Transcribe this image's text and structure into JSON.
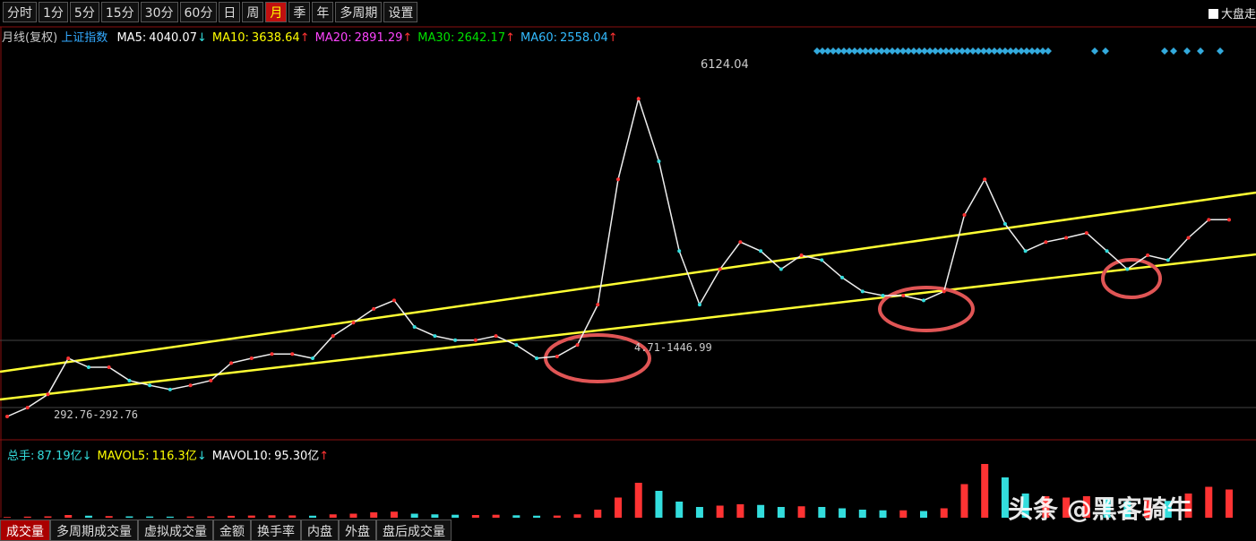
{
  "toolbar": {
    "tabs": [
      "分时",
      "1分",
      "5分",
      "15分",
      "30分",
      "60分",
      "日",
      "周",
      "月",
      "季",
      "年",
      "多周期",
      "设置"
    ],
    "active": 8,
    "checkbox_label": "大盘走"
  },
  "info": {
    "period": "月线(复权)",
    "index": "上证指数",
    "ma": [
      {
        "label": "MA5:",
        "value": "4040.07",
        "arrow": "↓",
        "color": "#ffffff"
      },
      {
        "label": "MA10:",
        "value": "3638.64",
        "arrow": "↑",
        "color": "#ffff00"
      },
      {
        "label": "MA20:",
        "value": "2891.29",
        "arrow": "↑",
        "color": "#ff44ff"
      },
      {
        "label": "MA30:",
        "value": "2642.17",
        "arrow": "↑",
        "color": "#00e000"
      },
      {
        "label": "MA60:",
        "value": "2558.04",
        "arrow": "↑",
        "color": "#33bbff"
      }
    ]
  },
  "price": {
    "closes": [
      283,
      430,
      650,
      1250,
      1100,
      1100,
      880,
      800,
      730,
      800,
      880,
      1170,
      1250,
      1320,
      1320,
      1250,
      1620,
      1840,
      2070,
      2210,
      1770,
      1620,
      1550,
      1550,
      1620,
      1470,
      1250,
      1280,
      1470,
      2140,
      4220,
      5560,
      4520,
      3030,
      2140,
      2730,
      3180,
      3030,
      2730,
      2960,
      2880,
      2590,
      2360,
      2290,
      2290,
      2210,
      2360,
      3630,
      4220,
      3480,
      3030,
      3180,
      3250,
      3330,
      3030,
      2730,
      2960,
      2880,
      3250,
      3550,
      3550
    ],
    "ylim": [
      0,
      6500
    ],
    "high_label": "6124.04",
    "low_label": "4.71-1446.99",
    "start_label": "292.76-292.76"
  },
  "volume": {
    "summary": [
      {
        "label": "总手:",
        "value": "87.19亿",
        "arrow": "↓",
        "color": "#33dddd"
      },
      {
        "label": "MAVOL5:",
        "value": "116.3亿",
        "arrow": "↓",
        "color": "#ffff00"
      },
      {
        "label": "MAVOL10:",
        "value": "95.30亿",
        "arrow": "↑",
        "color": "#ffffff"
      }
    ],
    "values": [
      5,
      8,
      10,
      20,
      15,
      12,
      10,
      9,
      8,
      9,
      10,
      14,
      16,
      18,
      17,
      15,
      25,
      30,
      40,
      45,
      30,
      25,
      22,
      20,
      22,
      18,
      15,
      16,
      25,
      60,
      150,
      260,
      200,
      120,
      80,
      90,
      100,
      95,
      80,
      85,
      80,
      70,
      60,
      55,
      55,
      50,
      70,
      250,
      400,
      300,
      180,
      160,
      150,
      160,
      140,
      120,
      130,
      125,
      180,
      230,
      210
    ],
    "ylim": [
      0,
      420
    ]
  },
  "bottom_tabs": [
    "成交量",
    "多周期成交量",
    "虚拟成交量",
    "金额",
    "换手率",
    "内盘",
    "外盘",
    "盘后成交量"
  ],
  "watermark": "头条 @黑客骑牛"
}
